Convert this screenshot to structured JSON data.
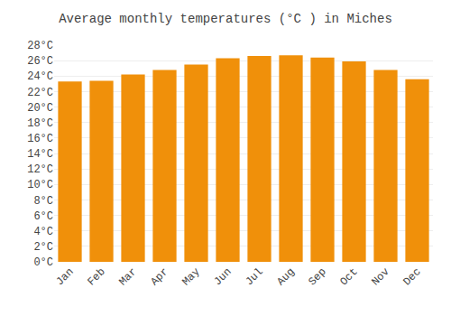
{
  "chart_data": {
    "type": "bar",
    "title": "Average monthly temperatures (°C ) in Miches",
    "categories": [
      "Jan",
      "Feb",
      "Mar",
      "Apr",
      "May",
      "Jun",
      "Jul",
      "Aug",
      "Sep",
      "Oct",
      "Nov",
      "Dec"
    ],
    "values": [
      23.3,
      23.4,
      24.2,
      24.8,
      25.5,
      26.3,
      26.6,
      26.7,
      26.4,
      25.9,
      24.8,
      23.6
    ],
    "color": "#F0900A",
    "ylim": [
      0,
      28
    ],
    "yticks": [
      {
        "value": 0,
        "label": "0°C"
      },
      {
        "value": 2,
        "label": "2°C"
      },
      {
        "value": 4,
        "label": "4°C"
      },
      {
        "value": 6,
        "label": "6°C"
      },
      {
        "value": 8,
        "label": "8°C"
      },
      {
        "value": 10,
        "label": "10°C"
      },
      {
        "value": 12,
        "label": "12°C"
      },
      {
        "value": 14,
        "label": "14°C"
      },
      {
        "value": 16,
        "label": "16°C"
      },
      {
        "value": 18,
        "label": "18°C"
      },
      {
        "value": 20,
        "label": "20°C"
      },
      {
        "value": 22,
        "label": "22°C"
      },
      {
        "value": 24,
        "label": "24°C"
      },
      {
        "value": 26,
        "label": "26°C"
      },
      {
        "value": 28,
        "label": "28°C"
      }
    ],
    "grid": true
  }
}
